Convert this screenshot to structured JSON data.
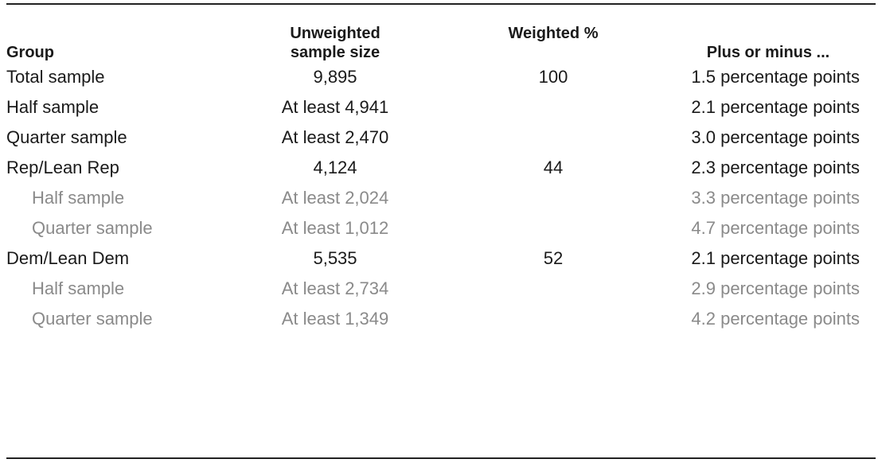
{
  "table": {
    "header": [
      "Group",
      "Unweighted sample size",
      "Weighted %",
      "Plus or minus ..."
    ],
    "groups": [
      {
        "rows": [
          {
            "cells": [
              "Total sample",
              "9,895",
              "100",
              "1.5 percentage points"
            ],
            "sub": false
          }
        ]
      },
      {
        "rows": [
          {
            "cells": [
              "Half sample",
              "At least 4,941",
              null,
              "2.1 percentage points"
            ],
            "sub": false
          },
          {
            "cells": [
              "Quarter sample",
              "At least 2,470",
              null,
              "3.0 percentage points"
            ],
            "sub": false
          }
        ]
      },
      {
        "rows": [
          {
            "cells": [
              "Rep/Lean Rep",
              "4,124",
              "44",
              "2.3 percentage points"
            ],
            "sub": false
          },
          {
            "cells": [
              "Half sample",
              "At least 2,024",
              null,
              "3.3 percentage points"
            ],
            "sub": true
          },
          {
            "cells": [
              "Quarter sample",
              "At least 1,012",
              null,
              "4.7 percentage points"
            ],
            "sub": true
          }
        ]
      },
      {
        "rows": [
          {
            "cells": [
              "Dem/Lean Dem",
              "5,535",
              "52",
              "2.1 percentage points"
            ],
            "sub": false
          },
          {
            "cells": [
              "Half sample",
              "At least 2,734",
              null,
              "2.9 percentage points"
            ],
            "sub": true
          },
          {
            "cells": [
              "Quarter sample",
              "At least 1,349",
              null,
              "4.2 percentage points"
            ],
            "sub": true
          }
        ]
      }
    ]
  }
}
